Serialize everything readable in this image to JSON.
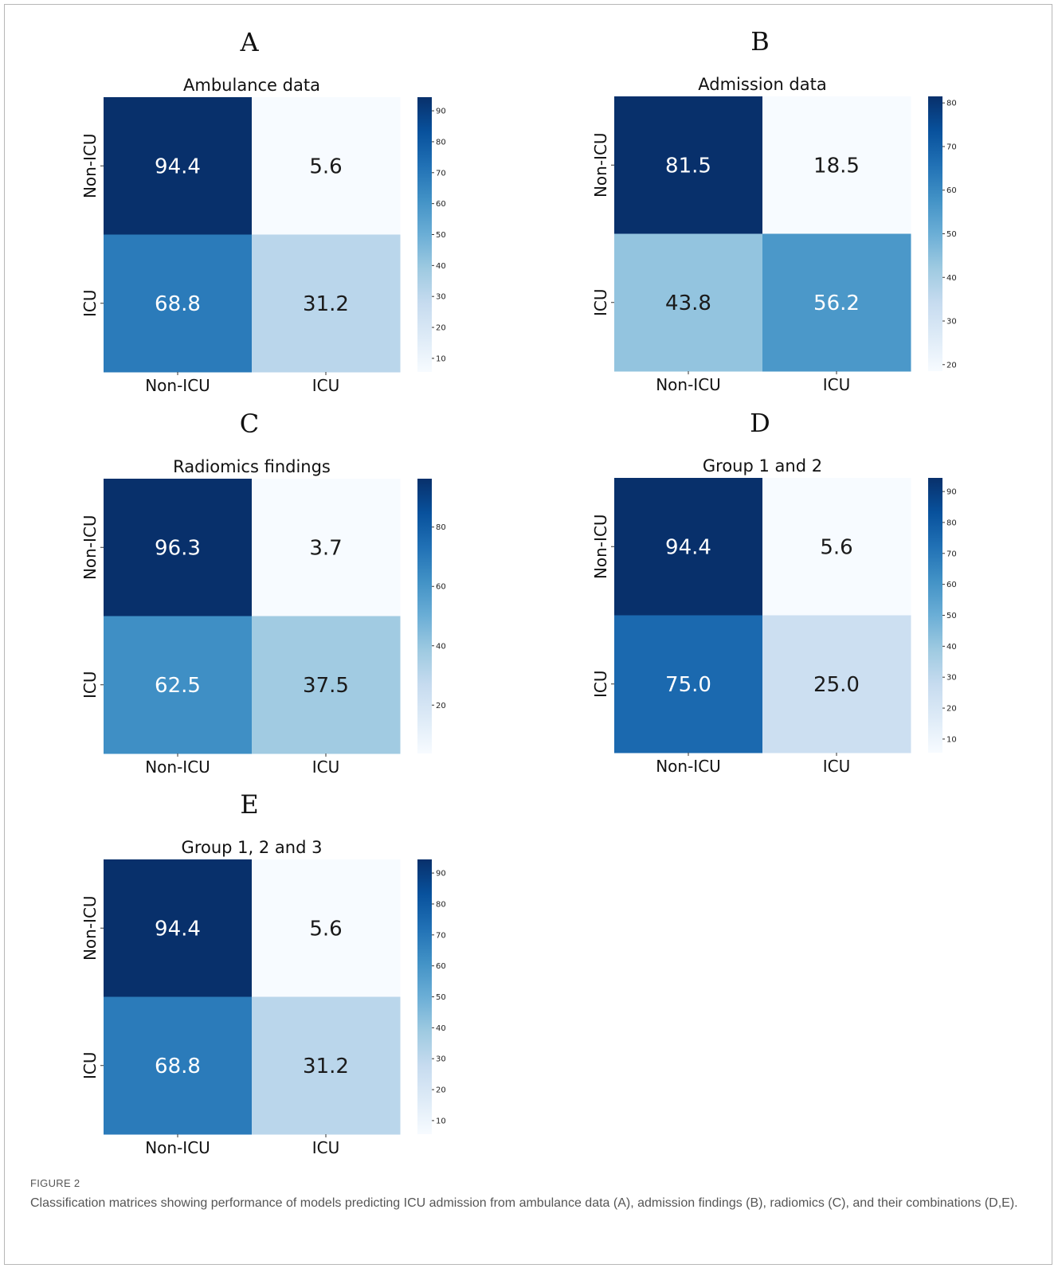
{
  "chart_data": [
    {
      "type": "heatmap",
      "panel": "A",
      "title": "Ambulance data",
      "row_labels": [
        "Non-ICU",
        "ICU"
      ],
      "col_labels": [
        "Non-ICU",
        "ICU"
      ],
      "values": [
        [
          94.4,
          5.6
        ],
        [
          68.8,
          31.2
        ]
      ],
      "value_labels": [
        [
          "94.4",
          "5.6"
        ],
        [
          "68.8",
          "31.2"
        ]
      ],
      "colorbar": {
        "range": [
          5.6,
          94.4
        ],
        "ticks": [
          10,
          20,
          30,
          40,
          50,
          60,
          70,
          80,
          90
        ],
        "tick_labels": [
          "10",
          "20",
          "30",
          "40",
          "50",
          "60",
          "70",
          "80",
          "90"
        ]
      },
      "colormap": "Blues"
    },
    {
      "type": "heatmap",
      "panel": "B",
      "title": "Admission data",
      "row_labels": [
        "Non-ICU",
        "ICU"
      ],
      "col_labels": [
        "Non-ICU",
        "ICU"
      ],
      "values": [
        [
          81.5,
          18.5
        ],
        [
          43.8,
          56.2
        ]
      ],
      "value_labels": [
        [
          "81.5",
          "18.5"
        ],
        [
          "43.8",
          "56.2"
        ]
      ],
      "colorbar": {
        "range": [
          18.5,
          81.5
        ],
        "ticks": [
          20,
          30,
          40,
          50,
          60,
          70,
          80
        ],
        "tick_labels": [
          "20",
          "30",
          "40",
          "50",
          "60",
          "70",
          "80"
        ]
      },
      "colormap": "Blues"
    },
    {
      "type": "heatmap",
      "panel": "C",
      "title": "Radiomics  findings",
      "row_labels": [
        "Non-ICU",
        "ICU"
      ],
      "col_labels": [
        "Non-ICU",
        "ICU"
      ],
      "values": [
        [
          96.3,
          3.7
        ],
        [
          62.5,
          37.5
        ]
      ],
      "value_labels": [
        [
          "96.3",
          "3.7"
        ],
        [
          "62.5",
          "37.5"
        ]
      ],
      "colorbar": {
        "range": [
          3.7,
          96.3
        ],
        "ticks": [
          20,
          40,
          60,
          80
        ],
        "tick_labels": [
          "20",
          "40",
          "60",
          "80"
        ]
      },
      "colormap": "Blues"
    },
    {
      "type": "heatmap",
      "panel": "D",
      "title": "Group 1 and 2",
      "row_labels": [
        "Non-ICU",
        "ICU"
      ],
      "col_labels": [
        "Non-ICU",
        "ICU"
      ],
      "values": [
        [
          94.4,
          5.6
        ],
        [
          75.0,
          25.0
        ]
      ],
      "value_labels": [
        [
          "94.4",
          "5.6"
        ],
        [
          "75.0",
          "25.0"
        ]
      ],
      "colorbar": {
        "range": [
          5.6,
          94.4
        ],
        "ticks": [
          10,
          20,
          30,
          40,
          50,
          60,
          70,
          80,
          90
        ],
        "tick_labels": [
          "10",
          "20",
          "30",
          "40",
          "50",
          "60",
          "70",
          "80",
          "90"
        ]
      },
      "colormap": "Blues"
    },
    {
      "type": "heatmap",
      "panel": "E",
      "title": "Group 1, 2 and 3",
      "row_labels": [
        "Non-ICU",
        "ICU"
      ],
      "col_labels": [
        "Non-ICU",
        "ICU"
      ],
      "values": [
        [
          94.4,
          5.6
        ],
        [
          68.8,
          31.2
        ]
      ],
      "value_labels": [
        [
          "94.4",
          "5.6"
        ],
        [
          "68.8",
          "31.2"
        ]
      ],
      "colorbar": {
        "range": [
          5.6,
          94.4
        ],
        "ticks": [
          10,
          20,
          30,
          40,
          50,
          60,
          70,
          80,
          90
        ],
        "tick_labels": [
          "10",
          "20",
          "30",
          "40",
          "50",
          "60",
          "70",
          "80",
          "90"
        ]
      },
      "colormap": "Blues"
    }
  ],
  "caption": {
    "figure_label": "FIGURE 2",
    "text": "Classification matrices showing performance of models predicting ICU admission from ambulance data (A), admission findings (B), radiomics (C), and their combinations (D,E)."
  }
}
